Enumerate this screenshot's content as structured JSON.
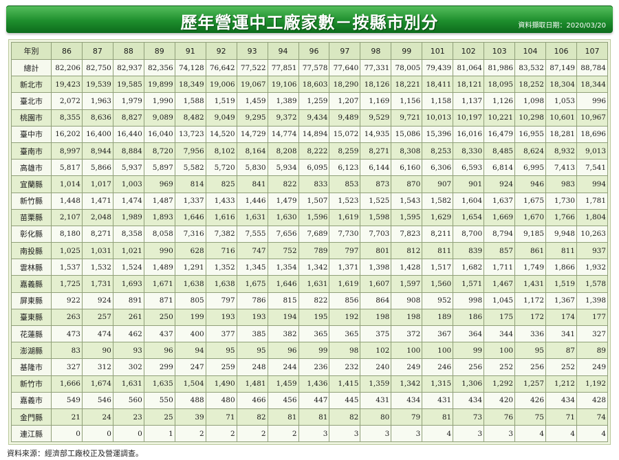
{
  "title": "歷年營運中工廠家數－按縣市別分",
  "date_label": "資料擷取日期：2020/03/20",
  "header_label": "年別",
  "years": [
    "86",
    "87",
    "88",
    "89",
    "91",
    "92",
    "93",
    "94",
    "96",
    "97",
    "98",
    "99",
    "101",
    "102",
    "103",
    "104",
    "106",
    "107"
  ],
  "rows": [
    {
      "label": "總計",
      "values": [
        "82,206",
        "82,750",
        "82,937",
        "82,356",
        "74,128",
        "76,642",
        "77,522",
        "77,851",
        "77,578",
        "77,640",
        "77,331",
        "78,005",
        "79,439",
        "81,064",
        "81,986",
        "83,532",
        "87,149",
        "88,784"
      ]
    },
    {
      "label": "新北市",
      "values": [
        "19,423",
        "19,539",
        "19,585",
        "19,899",
        "18,349",
        "19,006",
        "19,067",
        "19,106",
        "18,603",
        "18,290",
        "18,126",
        "18,221",
        "18,411",
        "18,121",
        "18,095",
        "18,252",
        "18,304",
        "18,344"
      ]
    },
    {
      "label": "臺北市",
      "values": [
        "2,072",
        "1,963",
        "1,979",
        "1,990",
        "1,588",
        "1,519",
        "1,459",
        "1,389",
        "1,259",
        "1,207",
        "1,169",
        "1,156",
        "1,158",
        "1,137",
        "1,126",
        "1,098",
        "1,053",
        "996"
      ]
    },
    {
      "label": "桃園市",
      "values": [
        "8,355",
        "8,636",
        "8,827",
        "9,089",
        "8,482",
        "9,049",
        "9,295",
        "9,372",
        "9,434",
        "9,489",
        "9,529",
        "9,721",
        "10,013",
        "10,197",
        "10,221",
        "10,298",
        "10,601",
        "10,967"
      ]
    },
    {
      "label": "臺中市",
      "values": [
        "16,202",
        "16,400",
        "16,440",
        "16,040",
        "13,723",
        "14,520",
        "14,729",
        "14,774",
        "14,894",
        "15,072",
        "14,935",
        "15,086",
        "15,396",
        "16,016",
        "16,479",
        "16,955",
        "18,281",
        "18,696"
      ]
    },
    {
      "label": "臺南市",
      "values": [
        "8,997",
        "8,944",
        "8,884",
        "8,720",
        "7,956",
        "8,102",
        "8,164",
        "8,208",
        "8,222",
        "8,259",
        "8,271",
        "8,308",
        "8,253",
        "8,330",
        "8,485",
        "8,624",
        "8,932",
        "9,013"
      ]
    },
    {
      "label": "高雄市",
      "values": [
        "5,817",
        "5,866",
        "5,937",
        "5,897",
        "5,582",
        "5,720",
        "5,830",
        "5,934",
        "6,095",
        "6,123",
        "6,144",
        "6,160",
        "6,306",
        "6,593",
        "6,814",
        "6,995",
        "7,413",
        "7,541"
      ]
    },
    {
      "label": "宜蘭縣",
      "values": [
        "1,014",
        "1,017",
        "1,003",
        "969",
        "814",
        "825",
        "841",
        "822",
        "833",
        "853",
        "873",
        "870",
        "907",
        "901",
        "924",
        "946",
        "983",
        "994"
      ]
    },
    {
      "label": "新竹縣",
      "values": [
        "1,448",
        "1,471",
        "1,474",
        "1,487",
        "1,337",
        "1,433",
        "1,446",
        "1,479",
        "1,507",
        "1,523",
        "1,525",
        "1,543",
        "1,582",
        "1,604",
        "1,637",
        "1,675",
        "1,730",
        "1,781"
      ]
    },
    {
      "label": "苗栗縣",
      "values": [
        "2,107",
        "2,048",
        "1,989",
        "1,893",
        "1,646",
        "1,616",
        "1,631",
        "1,630",
        "1,596",
        "1,619",
        "1,598",
        "1,595",
        "1,629",
        "1,654",
        "1,669",
        "1,670",
        "1,766",
        "1,804"
      ]
    },
    {
      "label": "彰化縣",
      "values": [
        "8,180",
        "8,271",
        "8,358",
        "8,058",
        "7,316",
        "7,382",
        "7,555",
        "7,656",
        "7,689",
        "7,730",
        "7,703",
        "7,823",
        "8,211",
        "8,700",
        "8,794",
        "9,185",
        "9,948",
        "10,263"
      ]
    },
    {
      "label": "南投縣",
      "values": [
        "1,025",
        "1,031",
        "1,021",
        "990",
        "628",
        "716",
        "747",
        "752",
        "789",
        "797",
        "801",
        "812",
        "811",
        "839",
        "857",
        "861",
        "811",
        "937"
      ]
    },
    {
      "label": "雲林縣",
      "values": [
        "1,537",
        "1,532",
        "1,524",
        "1,489",
        "1,291",
        "1,352",
        "1,345",
        "1,354",
        "1,342",
        "1,371",
        "1,398",
        "1,428",
        "1,517",
        "1,682",
        "1,711",
        "1,749",
        "1,866",
        "1,932"
      ]
    },
    {
      "label": "嘉義縣",
      "values": [
        "1,725",
        "1,731",
        "1,693",
        "1,671",
        "1,638",
        "1,638",
        "1,675",
        "1,646",
        "1,631",
        "1,619",
        "1,607",
        "1,597",
        "1,560",
        "1,571",
        "1,467",
        "1,431",
        "1,519",
        "1,578"
      ]
    },
    {
      "label": "屏東縣",
      "values": [
        "922",
        "924",
        "891",
        "871",
        "805",
        "797",
        "786",
        "815",
        "822",
        "856",
        "864",
        "908",
        "952",
        "998",
        "1,045",
        "1,172",
        "1,367",
        "1,398"
      ]
    },
    {
      "label": "臺東縣",
      "values": [
        "263",
        "257",
        "261",
        "250",
        "199",
        "193",
        "193",
        "194",
        "195",
        "192",
        "198",
        "198",
        "189",
        "186",
        "175",
        "172",
        "174",
        "177"
      ]
    },
    {
      "label": "花蓮縣",
      "values": [
        "473",
        "474",
        "462",
        "437",
        "400",
        "377",
        "385",
        "382",
        "365",
        "365",
        "375",
        "372",
        "367",
        "364",
        "344",
        "336",
        "341",
        "327"
      ]
    },
    {
      "label": "澎湖縣",
      "values": [
        "83",
        "90",
        "93",
        "96",
        "94",
        "95",
        "95",
        "96",
        "99",
        "98",
        "102",
        "100",
        "100",
        "99",
        "100",
        "95",
        "87",
        "89"
      ]
    },
    {
      "label": "基隆市",
      "values": [
        "327",
        "312",
        "302",
        "299",
        "247",
        "259",
        "248",
        "244",
        "236",
        "232",
        "240",
        "249",
        "246",
        "256",
        "252",
        "256",
        "252",
        "249"
      ]
    },
    {
      "label": "新竹市",
      "values": [
        "1,666",
        "1,674",
        "1,631",
        "1,635",
        "1,504",
        "1,490",
        "1,481",
        "1,459",
        "1,436",
        "1,415",
        "1,359",
        "1,342",
        "1,315",
        "1,306",
        "1,292",
        "1,257",
        "1,212",
        "1,192"
      ]
    },
    {
      "label": "嘉義市",
      "values": [
        "549",
        "546",
        "560",
        "550",
        "488",
        "480",
        "466",
        "456",
        "447",
        "445",
        "431",
        "434",
        "431",
        "434",
        "420",
        "426",
        "434",
        "428"
      ]
    },
    {
      "label": "金門縣",
      "values": [
        "21",
        "24",
        "23",
        "25",
        "39",
        "71",
        "82",
        "81",
        "81",
        "82",
        "80",
        "79",
        "81",
        "73",
        "76",
        "75",
        "71",
        "74"
      ]
    },
    {
      "label": "連江縣",
      "values": [
        "0",
        "0",
        "0",
        "1",
        "2",
        "2",
        "2",
        "2",
        "3",
        "3",
        "3",
        "3",
        "4",
        "3",
        "3",
        "4",
        "4",
        "4"
      ]
    }
  ],
  "footer": "資料來源：經濟部工廠校正及營運調查。"
}
